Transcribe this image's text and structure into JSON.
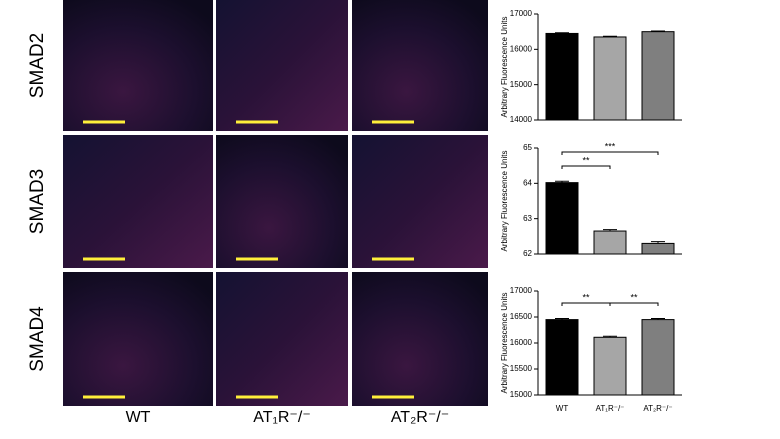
{
  "row_labels": [
    "SMAD2",
    "SMAD3",
    "SMAD4"
  ],
  "column_labels": [
    "WT",
    "AT₁R⁻/⁻",
    "AT₂R⁻/⁻"
  ],
  "chart_data": [
    {
      "type": "bar",
      "y_label": "Arbitrary Fluorescence Units",
      "categories": [
        null,
        null,
        null
      ],
      "values": [
        16450,
        16350,
        16500
      ],
      "errors": [
        20,
        20,
        20
      ],
      "colors": [
        "#000000",
        "#a6a6a6",
        "#7f7f7f"
      ],
      "ylim": [
        14000,
        17000
      ],
      "yticks": [
        14000,
        15000,
        16000,
        17000
      ],
      "annotations": []
    },
    {
      "type": "bar",
      "y_label": "Arbitrary Fluorescence Units",
      "categories": [
        null,
        null,
        null
      ],
      "values": [
        64.02,
        62.65,
        62.3
      ],
      "errors": [
        0.04,
        0.04,
        0.05
      ],
      "colors": [
        "#000000",
        "#a6a6a6",
        "#7f7f7f"
      ],
      "ylim": [
        62,
        65
      ],
      "yticks": [
        62,
        63,
        64,
        65
      ],
      "annotations": [
        "**",
        "***"
      ]
    },
    {
      "type": "bar",
      "y_label": "Arbitrary Fluorescence Units",
      "categories": [
        "WT",
        "AT₁R⁻/⁻",
        "AT₂R⁻/⁻"
      ],
      "values": [
        16450,
        16110,
        16450
      ],
      "errors": [
        20,
        20,
        20
      ],
      "colors": [
        "#000000",
        "#a6a6a6",
        "#7f7f7f"
      ],
      "ylim": [
        15000,
        17000
      ],
      "yticks": [
        15000,
        15500,
        16000,
        16500,
        17000
      ],
      "annotations": [
        "**",
        "**"
      ]
    }
  ]
}
